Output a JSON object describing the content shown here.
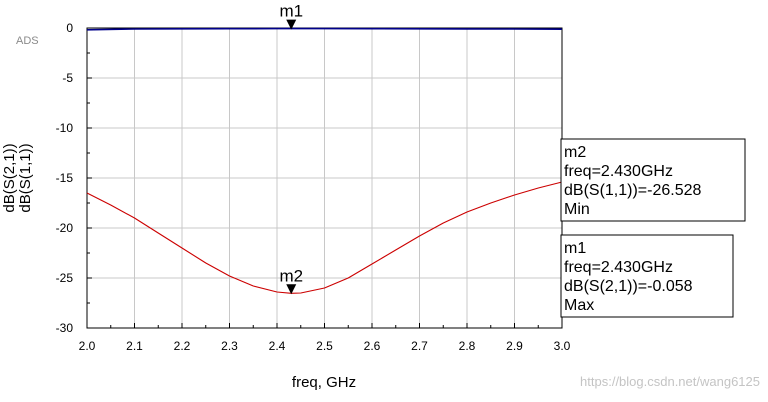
{
  "logo": "ADS",
  "watermark": "https://blog.csdn.net/wang6125",
  "chart_data": {
    "type": "line",
    "xlabel": "freq, GHz",
    "xlim": [
      2.0,
      3.0
    ],
    "ylim": [
      -30,
      0
    ],
    "xticks": [
      "2.0",
      "2.1",
      "2.2",
      "2.3",
      "2.4",
      "2.5",
      "2.6",
      "2.7",
      "2.8",
      "2.9",
      "3.0"
    ],
    "yticks": [
      "0",
      "-5",
      "-10",
      "-15",
      "-20",
      "-25",
      "-30"
    ],
    "grid": true,
    "series": [
      {
        "name": "dB(S(2,1))",
        "color": "#00008b",
        "x": [
          2.0,
          2.1,
          2.2,
          2.3,
          2.4,
          2.43,
          2.5,
          2.6,
          2.7,
          2.8,
          2.9,
          3.0
        ],
        "y": [
          -0.18,
          -0.1,
          -0.08,
          -0.07,
          -0.06,
          -0.058,
          -0.06,
          -0.07,
          -0.08,
          -0.09,
          -0.1,
          -0.12
        ]
      },
      {
        "name": "dB(S(1,1))",
        "color": "#cc0000",
        "x": [
          2.0,
          2.05,
          2.1,
          2.15,
          2.2,
          2.25,
          2.3,
          2.35,
          2.4,
          2.43,
          2.45,
          2.5,
          2.55,
          2.6,
          2.65,
          2.7,
          2.75,
          2.8,
          2.85,
          2.9,
          2.95,
          3.0
        ],
        "y": [
          -16.5,
          -17.7,
          -19.0,
          -20.5,
          -22.0,
          -23.5,
          -24.8,
          -25.8,
          -26.4,
          -26.528,
          -26.5,
          -26.0,
          -25.0,
          -23.6,
          -22.2,
          -20.8,
          -19.5,
          -18.4,
          -17.5,
          -16.7,
          -16.0,
          -15.4
        ]
      }
    ],
    "markers": [
      {
        "name": "m1",
        "x": 2.43,
        "y": -0.058,
        "lines": [
          "m1",
          "freq=2.430GHz",
          "dB(S(2,1))=-0.058",
          "Max"
        ]
      },
      {
        "name": "m2",
        "x": 2.43,
        "y": -26.528,
        "lines": [
          "m2",
          "freq=2.430GHz",
          "dB(S(1,1))=-26.528",
          "Min"
        ]
      }
    ]
  }
}
